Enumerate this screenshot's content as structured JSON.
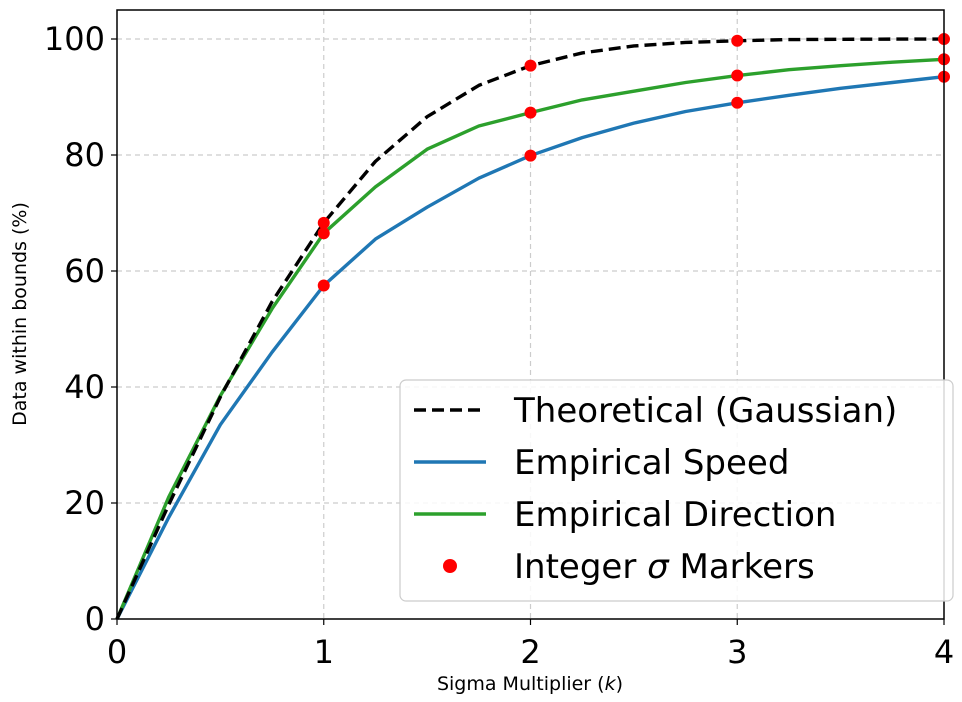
{
  "chart_data": {
    "type": "line",
    "xlabel": "Sigma Multiplier ($k$)",
    "ylabel": "Data within bounds (%)",
    "xlim": [
      0,
      4
    ],
    "ylim": [
      0,
      105
    ],
    "x_ticks": [
      0,
      1,
      2,
      3,
      4
    ],
    "y_ticks": [
      0,
      20,
      40,
      60,
      80,
      100
    ],
    "grid": true,
    "legend_position": "lower-right",
    "series": [
      {
        "name": "Theoretical (Gaussian)",
        "color": "#000000",
        "style": "dashed",
        "x": [
          0,
          0.25,
          0.5,
          0.75,
          1,
          1.25,
          1.5,
          1.75,
          2,
          2.25,
          2.5,
          2.75,
          3,
          3.25,
          3.5,
          3.75,
          4
        ],
        "y": [
          0,
          19.7,
          38.3,
          54.7,
          68.3,
          78.9,
          86.6,
          92.0,
          95.4,
          97.6,
          98.8,
          99.4,
          99.7,
          99.9,
          99.95,
          99.98,
          99.99
        ]
      },
      {
        "name": "Empirical Speed",
        "color": "#1f77b4",
        "style": "solid",
        "x": [
          0,
          0.25,
          0.5,
          0.75,
          1,
          1.25,
          1.5,
          1.75,
          2,
          2.25,
          2.5,
          2.75,
          3,
          3.25,
          3.5,
          3.75,
          4
        ],
        "y": [
          0,
          17.5,
          33.5,
          46.0,
          57.5,
          65.5,
          71.0,
          76.0,
          79.9,
          83.0,
          85.5,
          87.5,
          89.0,
          90.3,
          91.5,
          92.5,
          93.5
        ]
      },
      {
        "name": "Empirical Direction",
        "color": "#2ca02c",
        "style": "solid",
        "x": [
          0,
          0.25,
          0.5,
          0.75,
          1,
          1.25,
          1.5,
          1.75,
          2,
          2.25,
          2.5,
          2.75,
          3,
          3.25,
          3.5,
          3.75,
          4
        ],
        "y": [
          0,
          21.0,
          38.5,
          53.5,
          66.5,
          74.5,
          81.0,
          85.0,
          87.3,
          89.5,
          91.0,
          92.5,
          93.7,
          94.7,
          95.4,
          96.0,
          96.5
        ]
      }
    ],
    "markers": {
      "name": "Integer $\\sigma$ Markers",
      "color": "#ff0000",
      "points": [
        {
          "x": 1,
          "y": 68.3
        },
        {
          "x": 1,
          "y": 66.5
        },
        {
          "x": 1,
          "y": 57.5
        },
        {
          "x": 2,
          "y": 95.4
        },
        {
          "x": 2,
          "y": 87.3
        },
        {
          "x": 2,
          "y": 79.9
        },
        {
          "x": 3,
          "y": 99.7
        },
        {
          "x": 3,
          "y": 93.7
        },
        {
          "x": 3,
          "y": 89.0
        },
        {
          "x": 4,
          "y": 99.99
        },
        {
          "x": 4,
          "y": 96.5
        },
        {
          "x": 4,
          "y": 93.5
        }
      ]
    }
  }
}
